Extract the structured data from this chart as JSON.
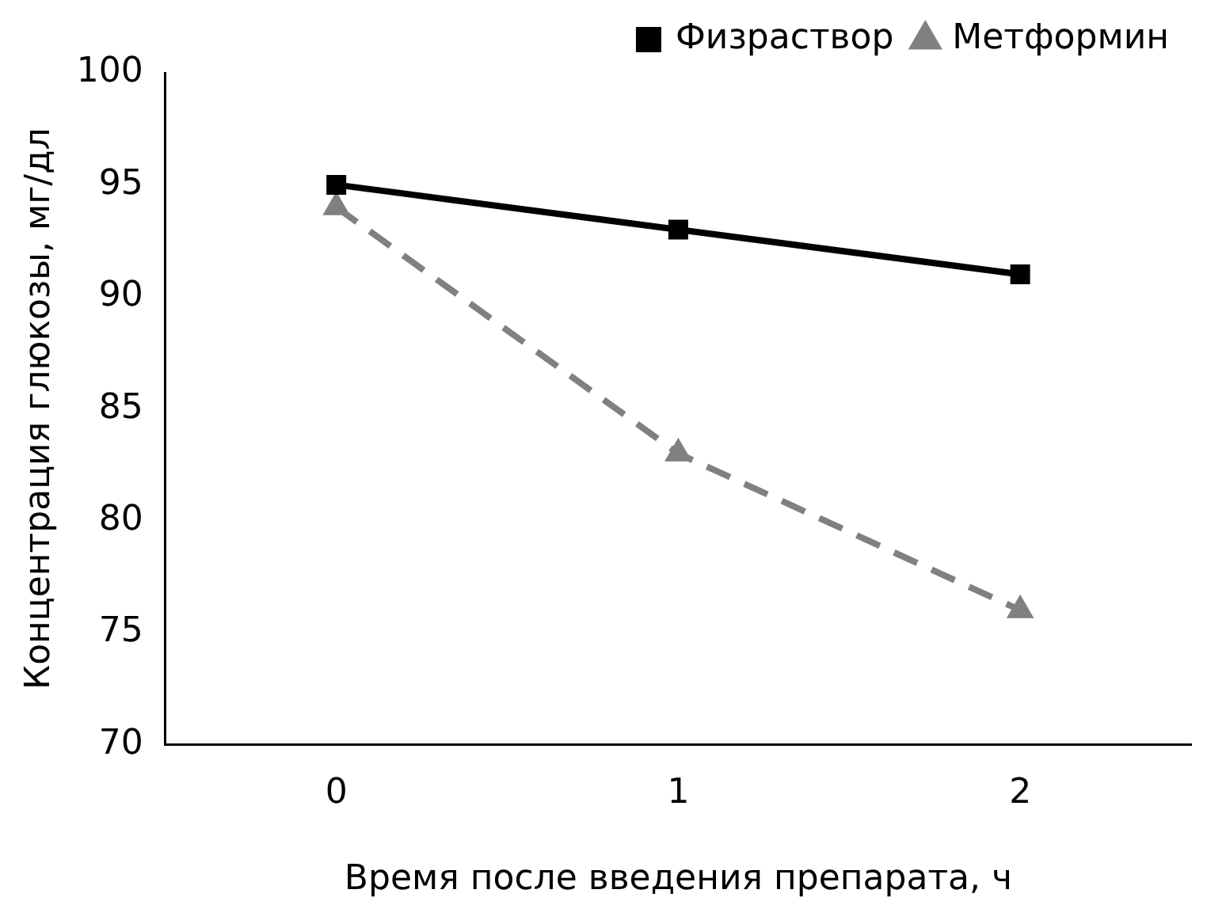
{
  "chart_data": {
    "type": "line",
    "xlabel": "Время после введения препарата, ч",
    "ylabel": "Концентрация глюкозы, мг/дл",
    "categories": [
      "0",
      "1",
      "2"
    ],
    "series": [
      {
        "name": "Физраствор",
        "color": "#000000",
        "values": [
          95,
          93,
          91
        ],
        "marker": "square",
        "line_style": "solid"
      },
      {
        "name": "Метформин",
        "color": "#808080",
        "values": [
          94,
          83,
          76
        ],
        "marker": "triangle",
        "line_style": "dashed"
      }
    ],
    "ylim": [
      70,
      100
    ],
    "yticks": [
      70,
      75,
      80,
      85,
      90,
      95,
      100
    ],
    "grid": false,
    "legend": "top right"
  }
}
